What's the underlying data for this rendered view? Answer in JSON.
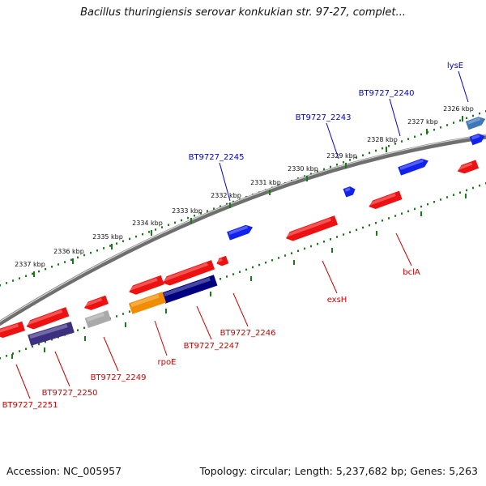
{
  "title": "Bacillus thuringiensis serovar konkukian str. 97-27, complet...",
  "footer": {
    "accession": "Accession: NC_005957",
    "topology": "Topology: circular; Length: 5,237,682 bp; Genes: 5,263"
  },
  "colors": {
    "tick": "#1a7a1a",
    "forward_label": "#0000cc",
    "reverse_label": "#cc0000",
    "red_gene": "#ee1111",
    "blue_gene": "#1122ee"
  },
  "scale_labels": [
    "2326 kbp",
    "2327 kbp",
    "2328 kbp",
    "2329 kbp",
    "2330 kbp",
    "2331 kbp",
    "2332 kbp",
    "2333 kbp",
    "2334 kbp",
    "2335 kbp",
    "2336 kbp",
    "2337 kbp"
  ],
  "gene_labels": {
    "forward": [
      "lysE",
      "BT9727_2240",
      "BT9727_2243",
      "BT9727_2245"
    ],
    "reverse": [
      "bclA",
      "exsH",
      "BT9727_2246",
      "BT9727_2247",
      "rpoE",
      "BT9727_2249",
      "BT9727_2250",
      "BT9727_2251"
    ]
  }
}
